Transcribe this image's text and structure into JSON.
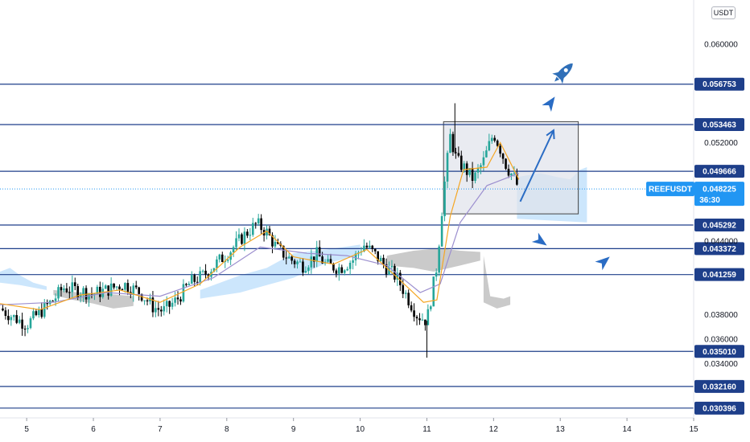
{
  "currency_badge": "USDT",
  "colors": {
    "up": "#26a69a",
    "down": "#000000",
    "level_line": "#1e3f8a",
    "tag_bg": "#1e3f8a",
    "price_tag_bg": "#2196f3",
    "ma_fast": "#f5a623",
    "ma_slow": "#9c8fcf",
    "cloud_blue": "#bbdefb",
    "cloud_gray": "#9e9e9e",
    "box_fill": "#e0e3eb",
    "drawing": "#2a6cc4",
    "rocket": "#2f6fb8"
  },
  "chart_data": {
    "type": "candlestick",
    "symbol": "REEFUSDT",
    "current_price": "0.048225",
    "countdown": "36:30",
    "y_axis": {
      "range": [
        0.0296,
        0.0636
      ],
      "ticks": [
        "0.060000",
        "0.052000",
        "0.044000",
        "0.038000",
        "0.036000",
        "0.034000"
      ]
    },
    "x_axis": {
      "range": [
        4.6,
        15.0
      ],
      "ticks": [
        {
          "label": "5",
          "value": 5
        },
        {
          "label": "6",
          "value": 6
        },
        {
          "label": "7",
          "value": 7
        },
        {
          "label": "8",
          "value": 8
        },
        {
          "label": "9",
          "value": 9
        },
        {
          "label": "10",
          "value": 10
        },
        {
          "label": "11",
          "value": 11
        },
        {
          "label": "12",
          "value": 12
        },
        {
          "label": "13",
          "value": 13
        },
        {
          "label": "14",
          "value": 14
        },
        {
          "label": "15",
          "value": 15
        }
      ]
    },
    "horizontal_levels": [
      "0.056753",
      "0.053463",
      "0.049666",
      "0.045292",
      "0.043372",
      "0.041259",
      "0.035010",
      "0.032160",
      "0.030396"
    ],
    "close_path": [
      [
        4.6,
        0.0385
      ],
      [
        4.8,
        0.0378
      ],
      [
        5.0,
        0.0372
      ],
      [
        5.2,
        0.0382
      ],
      [
        5.4,
        0.0392
      ],
      [
        5.55,
        0.0402
      ],
      [
        5.75,
        0.04
      ],
      [
        6.0,
        0.0397
      ],
      [
        6.2,
        0.04
      ],
      [
        6.45,
        0.0405
      ],
      [
        6.7,
        0.0398
      ],
      [
        6.9,
        0.0386
      ],
      [
        7.05,
        0.0383
      ],
      [
        7.25,
        0.0392
      ],
      [
        7.45,
        0.0406
      ],
      [
        7.65,
        0.0412
      ],
      [
        7.85,
        0.0422
      ],
      [
        8.05,
        0.0432
      ],
      [
        8.25,
        0.0444
      ],
      [
        8.45,
        0.0454
      ],
      [
        8.6,
        0.0447
      ],
      [
        8.75,
        0.0434
      ],
      [
        8.95,
        0.0425
      ],
      [
        9.15,
        0.042
      ],
      [
        9.35,
        0.0429
      ],
      [
        9.5,
        0.042
      ],
      [
        9.7,
        0.0418
      ],
      [
        9.9,
        0.0425
      ],
      [
        10.05,
        0.0437
      ],
      [
        10.2,
        0.043
      ],
      [
        10.4,
        0.0418
      ],
      [
        10.55,
        0.041
      ],
      [
        10.7,
        0.0395
      ],
      [
        10.85,
        0.038
      ],
      [
        11.0,
        0.0375
      ],
      [
        11.15,
        0.042
      ],
      [
        11.25,
        0.048
      ],
      [
        11.35,
        0.0525
      ],
      [
        11.45,
        0.0505
      ],
      [
        11.55,
        0.05
      ],
      [
        11.7,
        0.049
      ],
      [
        11.85,
        0.0505
      ],
      [
        12.0,
        0.0528
      ],
      [
        12.1,
        0.0515
      ],
      [
        12.2,
        0.05
      ],
      [
        12.3,
        0.0492
      ],
      [
        12.38,
        0.0482
      ]
    ],
    "spike_highs": [
      [
        11.0,
        0.0345
      ],
      [
        11.42,
        0.0552
      ]
    ],
    "ma_fast": [
      [
        4.6,
        0.0389
      ],
      [
        5.2,
        0.0384
      ],
      [
        5.8,
        0.0396
      ],
      [
        6.4,
        0.04
      ],
      [
        7.0,
        0.039
      ],
      [
        7.6,
        0.0405
      ],
      [
        8.2,
        0.0435
      ],
      [
        8.6,
        0.0448
      ],
      [
        9.0,
        0.0427
      ],
      [
        9.6,
        0.0421
      ],
      [
        10.1,
        0.0433
      ],
      [
        10.6,
        0.0408
      ],
      [
        10.95,
        0.039
      ],
      [
        11.15,
        0.0392
      ],
      [
        11.35,
        0.046
      ],
      [
        11.55,
        0.0498
      ],
      [
        11.9,
        0.05
      ],
      [
        12.1,
        0.052
      ],
      [
        12.38,
        0.049
      ]
    ],
    "ma_slow": [
      [
        4.6,
        0.0388
      ],
      [
        5.4,
        0.039
      ],
      [
        6.2,
        0.0398
      ],
      [
        7.0,
        0.0395
      ],
      [
        7.8,
        0.041
      ],
      [
        8.5,
        0.0435
      ],
      [
        9.2,
        0.043
      ],
      [
        9.8,
        0.0428
      ],
      [
        10.4,
        0.042
      ],
      [
        10.9,
        0.0398
      ],
      [
        11.2,
        0.0405
      ],
      [
        11.5,
        0.0455
      ],
      [
        11.9,
        0.0485
      ],
      [
        12.38,
        0.0495
      ]
    ],
    "cloud_blue": [
      [
        [
          4.6,
          0.0415
        ],
        [
          4.75,
          0.0418
        ],
        [
          4.9,
          0.0412
        ],
        [
          5.1,
          0.0406
        ],
        [
          5.3,
          0.0403
        ],
        [
          5.3,
          0.04
        ],
        [
          5.1,
          0.0402
        ],
        [
          4.9,
          0.0404
        ],
        [
          4.6,
          0.0406
        ]
      ],
      [
        [
          7.6,
          0.04
        ],
        [
          8.2,
          0.0412
        ],
        [
          8.6,
          0.0418
        ],
        [
          9.0,
          0.043
        ],
        [
          9.5,
          0.0433
        ],
        [
          10.0,
          0.0437
        ],
        [
          10.0,
          0.0428
        ],
        [
          9.5,
          0.0422
        ],
        [
          9.0,
          0.041
        ],
        [
          8.6,
          0.0404
        ],
        [
          8.2,
          0.0398
        ],
        [
          7.6,
          0.0393
        ]
      ],
      [
        [
          12.35,
          0.0492
        ],
        [
          12.7,
          0.0495
        ],
        [
          12.95,
          0.0492
        ],
        [
          13.15,
          0.049
        ],
        [
          13.3,
          0.0498
        ],
        [
          13.4,
          0.05
        ],
        [
          13.4,
          0.0455
        ],
        [
          12.35,
          0.0458
        ]
      ]
    ],
    "cloud_gray": [
      [
        [
          5.4,
          0.04
        ],
        [
          5.8,
          0.0398
        ],
        [
          6.2,
          0.0397
        ],
        [
          6.6,
          0.0395
        ],
        [
          6.6,
          0.0387
        ],
        [
          6.3,
          0.0385
        ],
        [
          6.0,
          0.0389
        ],
        [
          5.7,
          0.0392
        ],
        [
          5.4,
          0.0396
        ]
      ],
      [
        [
          10.4,
          0.0428
        ],
        [
          10.8,
          0.0432
        ],
        [
          11.2,
          0.0434
        ],
        [
          11.5,
          0.0432
        ],
        [
          11.8,
          0.0431
        ],
        [
          11.8,
          0.0424
        ],
        [
          11.5,
          0.042
        ],
        [
          11.1,
          0.0415
        ],
        [
          10.8,
          0.0418
        ],
        [
          10.4,
          0.042
        ]
      ],
      [
        [
          11.85,
          0.0428
        ],
        [
          11.95,
          0.0395
        ],
        [
          12.15,
          0.0393
        ],
        [
          12.25,
          0.0395
        ],
        [
          12.25,
          0.0388
        ],
        [
          12.05,
          0.0385
        ],
        [
          11.85,
          0.039
        ]
      ]
    ],
    "box": {
      "x0": 11.25,
      "x1": 13.27,
      "y0": 0.0537,
      "y1": 0.0462
    },
    "projection_path": [
      [
        12.4,
        0.0472
      ],
      [
        12.9,
        0.053
      ]
    ],
    "pointer_arrows": [
      {
        "x": 12.85,
        "y": 0.0552,
        "angle": -55
      },
      {
        "x": 12.7,
        "y": 0.044,
        "angle": 35
      },
      {
        "x": 13.65,
        "y": 0.0423,
        "angle": -40
      }
    ],
    "rocket": {
      "x": 13.05,
      "y": 0.0577
    }
  }
}
